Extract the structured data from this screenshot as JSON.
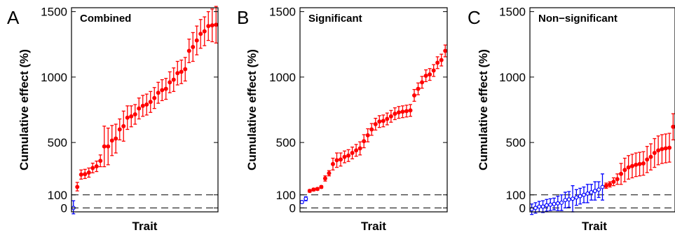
{
  "chart_data": [
    {
      "type": "scatter",
      "panel": "A",
      "title": "Combined",
      "xlabel": "Trait",
      "ylabel": "Cumulative effect (%)",
      "ylim": [
        -30,
        1530
      ],
      "yticks": [
        0,
        100,
        500,
        1000,
        1500
      ],
      "reference_lines": [
        0,
        100
      ],
      "grid": false,
      "legend": "none",
      "series": [
        {
          "color": "#0000ff",
          "marker": "open-circle",
          "points": [
            {
              "x": 1,
              "y": 0,
              "lo": -45,
              "hi": 55
            }
          ]
        },
        {
          "color": "#ff0000",
          "marker": "filled-circle",
          "points": [
            {
              "x": 2,
              "y": 160,
              "lo": 130,
              "hi": 195
            },
            {
              "x": 3,
              "y": 255,
              "lo": 220,
              "hi": 290
            },
            {
              "x": 4,
              "y": 258,
              "lo": 225,
              "hi": 295
            },
            {
              "x": 5,
              "y": 270,
              "lo": 235,
              "hi": 305
            },
            {
              "x": 6,
              "y": 305,
              "lo": 268,
              "hi": 342
            },
            {
              "x": 7,
              "y": 318,
              "lo": 278,
              "hi": 358
            },
            {
              "x": 8,
              "y": 360,
              "lo": 315,
              "hi": 405
            },
            {
              "x": 9,
              "y": 470,
              "lo": 315,
              "hi": 625
            },
            {
              "x": 10,
              "y": 470,
              "lo": 330,
              "hi": 610
            },
            {
              "x": 11,
              "y": 515,
              "lo": 400,
              "hi": 630
            },
            {
              "x": 12,
              "y": 530,
              "lo": 420,
              "hi": 640
            },
            {
              "x": 13,
              "y": 600,
              "lo": 520,
              "hi": 680
            },
            {
              "x": 14,
              "y": 625,
              "lo": 510,
              "hi": 740
            },
            {
              "x": 15,
              "y": 690,
              "lo": 600,
              "hi": 780
            },
            {
              "x": 16,
              "y": 700,
              "lo": 620,
              "hi": 780
            },
            {
              "x": 17,
              "y": 715,
              "lo": 640,
              "hi": 790
            },
            {
              "x": 18,
              "y": 760,
              "lo": 680,
              "hi": 840
            },
            {
              "x": 19,
              "y": 780,
              "lo": 700,
              "hi": 860
            },
            {
              "x": 20,
              "y": 790,
              "lo": 710,
              "hi": 870
            },
            {
              "x": 21,
              "y": 810,
              "lo": 730,
              "hi": 890
            },
            {
              "x": 22,
              "y": 840,
              "lo": 760,
              "hi": 920
            },
            {
              "x": 23,
              "y": 880,
              "lo": 800,
              "hi": 960
            },
            {
              "x": 24,
              "y": 900,
              "lo": 820,
              "hi": 980
            },
            {
              "x": 25,
              "y": 910,
              "lo": 830,
              "hi": 990
            },
            {
              "x": 26,
              "y": 960,
              "lo": 880,
              "hi": 1040
            },
            {
              "x": 27,
              "y": 980,
              "lo": 890,
              "hi": 1070
            },
            {
              "x": 28,
              "y": 1030,
              "lo": 940,
              "hi": 1120
            },
            {
              "x": 29,
              "y": 1040,
              "lo": 950,
              "hi": 1130
            },
            {
              "x": 30,
              "y": 1060,
              "lo": 970,
              "hi": 1150
            },
            {
              "x": 31,
              "y": 1200,
              "lo": 1110,
              "hi": 1290
            },
            {
              "x": 32,
              "y": 1230,
              "lo": 1120,
              "hi": 1340
            },
            {
              "x": 33,
              "y": 1280,
              "lo": 1170,
              "hi": 1390
            },
            {
              "x": 34,
              "y": 1330,
              "lo": 1220,
              "hi": 1440
            },
            {
              "x": 35,
              "y": 1350,
              "lo": 1240,
              "hi": 1460
            },
            {
              "x": 36,
              "y": 1390,
              "lo": 1280,
              "hi": 1500
            },
            {
              "x": 37,
              "y": 1395,
              "lo": 1270,
              "hi": 1520
            },
            {
              "x": 38,
              "y": 1400,
              "lo": 1260,
              "hi": 1540
            }
          ]
        }
      ]
    },
    {
      "type": "scatter",
      "panel": "B",
      "title": "Significant",
      "xlabel": "Trait",
      "ylabel": "Cumulative effect (%)",
      "ylim": [
        -30,
        1530
      ],
      "yticks": [
        0,
        100,
        500,
        1000,
        1500
      ],
      "reference_lines": [
        0,
        100
      ],
      "grid": false,
      "legend": "none",
      "series": [
        {
          "color": "#0000ff",
          "marker": "open-circle",
          "points": [
            {
              "x": 1,
              "y": 45,
              "lo": 35,
              "hi": 55
            },
            {
              "x": 2,
              "y": 70,
              "lo": 55,
              "hi": 85
            }
          ]
        },
        {
          "color": "#ff0000",
          "marker": "filled-circle",
          "points": [
            {
              "x": 3,
              "y": 130,
              "lo": 120,
              "hi": 140
            },
            {
              "x": 4,
              "y": 140,
              "lo": 130,
              "hi": 150
            },
            {
              "x": 5,
              "y": 145,
              "lo": 135,
              "hi": 155
            },
            {
              "x": 6,
              "y": 160,
              "lo": 150,
              "hi": 170
            },
            {
              "x": 7,
              "y": 225,
              "lo": 205,
              "hi": 245
            },
            {
              "x": 8,
              "y": 265,
              "lo": 245,
              "hi": 285
            },
            {
              "x": 9,
              "y": 335,
              "lo": 290,
              "hi": 380
            },
            {
              "x": 10,
              "y": 365,
              "lo": 310,
              "hi": 420
            },
            {
              "x": 11,
              "y": 370,
              "lo": 320,
              "hi": 420
            },
            {
              "x": 12,
              "y": 390,
              "lo": 345,
              "hi": 435
            },
            {
              "x": 13,
              "y": 400,
              "lo": 355,
              "hi": 445
            },
            {
              "x": 14,
              "y": 420,
              "lo": 375,
              "hi": 465
            },
            {
              "x": 15,
              "y": 440,
              "lo": 395,
              "hi": 485
            },
            {
              "x": 16,
              "y": 455,
              "lo": 405,
              "hi": 505
            },
            {
              "x": 17,
              "y": 510,
              "lo": 460,
              "hi": 560
            },
            {
              "x": 18,
              "y": 555,
              "lo": 505,
              "hi": 605
            },
            {
              "x": 19,
              "y": 600,
              "lo": 555,
              "hi": 645
            },
            {
              "x": 20,
              "y": 640,
              "lo": 595,
              "hi": 685
            },
            {
              "x": 21,
              "y": 660,
              "lo": 615,
              "hi": 705
            },
            {
              "x": 22,
              "y": 665,
              "lo": 620,
              "hi": 710
            },
            {
              "x": 23,
              "y": 680,
              "lo": 635,
              "hi": 725
            },
            {
              "x": 24,
              "y": 700,
              "lo": 655,
              "hi": 745
            },
            {
              "x": 25,
              "y": 720,
              "lo": 675,
              "hi": 765
            },
            {
              "x": 26,
              "y": 730,
              "lo": 685,
              "hi": 775
            },
            {
              "x": 27,
              "y": 735,
              "lo": 690,
              "hi": 780
            },
            {
              "x": 28,
              "y": 740,
              "lo": 695,
              "hi": 785
            },
            {
              "x": 29,
              "y": 745,
              "lo": 700,
              "hi": 790
            },
            {
              "x": 30,
              "y": 860,
              "lo": 815,
              "hi": 905
            },
            {
              "x": 31,
              "y": 910,
              "lo": 865,
              "hi": 955
            },
            {
              "x": 32,
              "y": 960,
              "lo": 915,
              "hi": 1005
            },
            {
              "x": 33,
              "y": 1010,
              "lo": 965,
              "hi": 1055
            },
            {
              "x": 34,
              "y": 1020,
              "lo": 975,
              "hi": 1065
            },
            {
              "x": 35,
              "y": 1050,
              "lo": 1005,
              "hi": 1095
            },
            {
              "x": 36,
              "y": 1110,
              "lo": 1065,
              "hi": 1155
            },
            {
              "x": 37,
              "y": 1130,
              "lo": 1085,
              "hi": 1175
            },
            {
              "x": 38,
              "y": 1200,
              "lo": 1155,
              "hi": 1245
            }
          ]
        }
      ]
    },
    {
      "type": "scatter",
      "panel": "C",
      "title": "Non−significant",
      "xlabel": "Trait",
      "ylabel": "Cumulative effect (%)",
      "ylim": [
        -30,
        1530
      ],
      "yticks": [
        0,
        100,
        500,
        1000,
        1500
      ],
      "reference_lines": [
        0,
        100
      ],
      "grid": false,
      "legend": "none",
      "series": [
        {
          "color": "#0000ff",
          "marker": "open-circle",
          "points": [
            {
              "x": 1,
              "y": -10,
              "lo": -50,
              "hi": 30
            },
            {
              "x": 2,
              "y": 0,
              "lo": -40,
              "hi": 40
            },
            {
              "x": 3,
              "y": 10,
              "lo": -30,
              "hi": 50
            },
            {
              "x": 4,
              "y": 10,
              "lo": -35,
              "hi": 55
            },
            {
              "x": 5,
              "y": 20,
              "lo": -25,
              "hi": 65
            },
            {
              "x": 6,
              "y": 25,
              "lo": -20,
              "hi": 70
            },
            {
              "x": 7,
              "y": 30,
              "lo": -15,
              "hi": 75
            },
            {
              "x": 8,
              "y": 35,
              "lo": -20,
              "hi": 90
            },
            {
              "x": 9,
              "y": 40,
              "lo": -20,
              "hi": 100
            },
            {
              "x": 10,
              "y": 60,
              "lo": 0,
              "hi": 120
            },
            {
              "x": 11,
              "y": 65,
              "lo": 5,
              "hi": 125
            },
            {
              "x": 12,
              "y": 70,
              "lo": -30,
              "hi": 170
            },
            {
              "x": 13,
              "y": 80,
              "lo": 20,
              "hi": 140
            },
            {
              "x": 14,
              "y": 90,
              "lo": 30,
              "hi": 150
            },
            {
              "x": 15,
              "y": 100,
              "lo": 40,
              "hi": 160
            },
            {
              "x": 16,
              "y": 110,
              "lo": 40,
              "hi": 180
            },
            {
              "x": 17,
              "y": 120,
              "lo": 60,
              "hi": 180
            },
            {
              "x": 18,
              "y": 130,
              "lo": 60,
              "hi": 200
            },
            {
              "x": 19,
              "y": 140,
              "lo": 80,
              "hi": 200
            },
            {
              "x": 20,
              "y": 160,
              "lo": 60,
              "hi": 260
            }
          ]
        },
        {
          "color": "#ff0000",
          "marker": "filled-circle",
          "points": [
            {
              "x": 21,
              "y": 170,
              "lo": 150,
              "hi": 190
            },
            {
              "x": 22,
              "y": 180,
              "lo": 160,
              "hi": 200
            },
            {
              "x": 23,
              "y": 200,
              "lo": 170,
              "hi": 230
            },
            {
              "x": 24,
              "y": 220,
              "lo": 180,
              "hi": 260
            },
            {
              "x": 25,
              "y": 260,
              "lo": 180,
              "hi": 340
            },
            {
              "x": 26,
              "y": 290,
              "lo": 200,
              "hi": 380
            },
            {
              "x": 27,
              "y": 310,
              "lo": 220,
              "hi": 400
            },
            {
              "x": 28,
              "y": 320,
              "lo": 230,
              "hi": 410
            },
            {
              "x": 29,
              "y": 330,
              "lo": 240,
              "hi": 420
            },
            {
              "x": 30,
              "y": 335,
              "lo": 245,
              "hi": 425
            },
            {
              "x": 31,
              "y": 340,
              "lo": 250,
              "hi": 430
            },
            {
              "x": 32,
              "y": 370,
              "lo": 270,
              "hi": 470
            },
            {
              "x": 33,
              "y": 390,
              "lo": 290,
              "hi": 490
            },
            {
              "x": 34,
              "y": 420,
              "lo": 310,
              "hi": 530
            },
            {
              "x": 35,
              "y": 440,
              "lo": 330,
              "hi": 550
            },
            {
              "x": 36,
              "y": 450,
              "lo": 340,
              "hi": 560
            },
            {
              "x": 37,
              "y": 455,
              "lo": 345,
              "hi": 565
            },
            {
              "x": 38,
              "y": 460,
              "lo": 350,
              "hi": 570
            },
            {
              "x": 39,
              "y": 620,
              "lo": 520,
              "hi": 720
            }
          ]
        }
      ]
    }
  ]
}
